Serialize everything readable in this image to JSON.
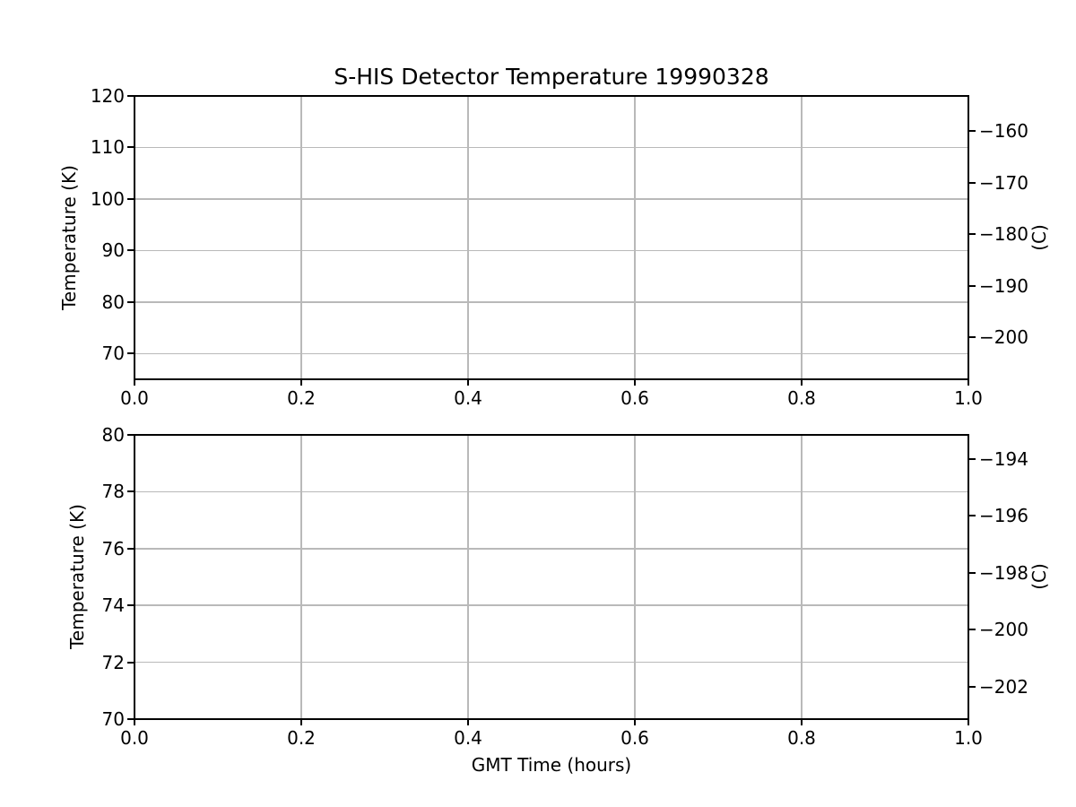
{
  "colors": {
    "background": "#ffffff",
    "spine": "#000000",
    "grid": "#b9b9b9",
    "text": "#000000"
  },
  "chart_data": [
    {
      "type": "line",
      "title": "S-HIS Detector Temperature 19990328",
      "xlabel": "",
      "ylabel_left": "Temperature (K)",
      "ylabel_right": "(C)",
      "xlim": [
        0.0,
        1.0
      ],
      "ylim_left": [
        65,
        120
      ],
      "ylim_right": [
        -208.15,
        -153.15
      ],
      "grid": true,
      "legend": false,
      "series": [],
      "xticks": [
        {
          "v": 0.0,
          "label": "0.0"
        },
        {
          "v": 0.2,
          "label": "0.2"
        },
        {
          "v": 0.4,
          "label": "0.4"
        },
        {
          "v": 0.6,
          "label": "0.6"
        },
        {
          "v": 0.8,
          "label": "0.8"
        },
        {
          "v": 1.0,
          "label": "1.0"
        }
      ],
      "yticks_left": [
        {
          "v": 120,
          "label": "120"
        },
        {
          "v": 110,
          "label": "110"
        },
        {
          "v": 100,
          "label": "100"
        },
        {
          "v": 90,
          "label": "90"
        },
        {
          "v": 80,
          "label": "80"
        },
        {
          "v": 70,
          "label": "70"
        }
      ],
      "yticks_right": [
        {
          "v": -160,
          "label": "−160"
        },
        {
          "v": -170,
          "label": "−170"
        },
        {
          "v": -180,
          "label": "−180"
        },
        {
          "v": -190,
          "label": "−190"
        },
        {
          "v": -200,
          "label": "−200"
        }
      ]
    },
    {
      "type": "line",
      "title": "",
      "xlabel": "GMT Time (hours)",
      "ylabel_left": "Temperature (K)",
      "ylabel_right": "(C)",
      "xlim": [
        0.0,
        1.0
      ],
      "ylim_left": [
        70,
        80
      ],
      "ylim_right": [
        -203.15,
        -193.15
      ],
      "grid": true,
      "legend": false,
      "series": [],
      "xticks": [
        {
          "v": 0.0,
          "label": "0.0"
        },
        {
          "v": 0.2,
          "label": "0.2"
        },
        {
          "v": 0.4,
          "label": "0.4"
        },
        {
          "v": 0.6,
          "label": "0.6"
        },
        {
          "v": 0.8,
          "label": "0.8"
        },
        {
          "v": 1.0,
          "label": "1.0"
        }
      ],
      "yticks_left": [
        {
          "v": 80,
          "label": "80"
        },
        {
          "v": 78,
          "label": "78"
        },
        {
          "v": 76,
          "label": "76"
        },
        {
          "v": 74,
          "label": "74"
        },
        {
          "v": 72,
          "label": "72"
        },
        {
          "v": 70,
          "label": "70"
        }
      ],
      "yticks_right": [
        {
          "v": -194,
          "label": "−194"
        },
        {
          "v": -196,
          "label": "−196"
        },
        {
          "v": -198,
          "label": "−198"
        },
        {
          "v": -200,
          "label": "−200"
        },
        {
          "v": -202,
          "label": "−202"
        }
      ]
    }
  ]
}
